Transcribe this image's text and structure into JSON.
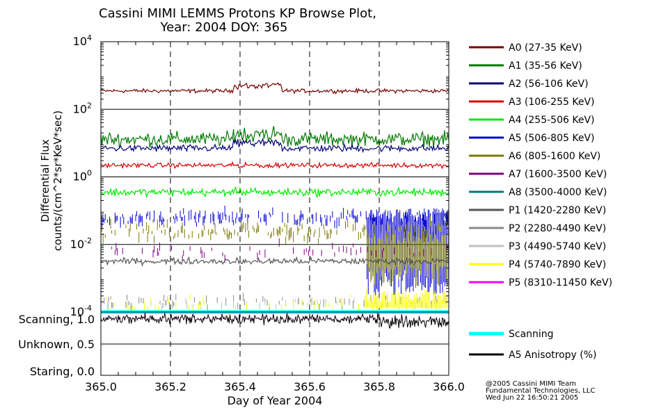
{
  "title_line1": "Cassini MIMI LEMMS Protons KP Browse Plot,",
  "title_line2": "Year: 2004 DOY: 365",
  "credits": [
    "@2005 Cassini MIMI Team",
    "Fundamental Technologies, LLC",
    "Wed Jun 22 16:50:21 2005"
  ],
  "chart_data": {
    "type": "line",
    "xlabel": "Day of Year 2004",
    "ylabel_line1": "Differential Flux",
    "ylabel_line2": "counts/(cm^2*sr*KeV*sec)",
    "xlim": [
      365.0,
      366.0
    ],
    "x_ticks": [
      "365.0",
      "365.2",
      "365.4",
      "365.6",
      "365.8",
      "366.0"
    ],
    "y_scale": "log",
    "ylim": [
      0.0001,
      10000
    ],
    "y_ticks": [
      {
        "base": "10",
        "exp": "4",
        "value": 10000
      },
      {
        "base": "10",
        "exp": "2",
        "value": 100
      },
      {
        "base": "10",
        "exp": "0",
        "value": 1
      },
      {
        "base": "10",
        "exp": "-2",
        "value": 0.01
      },
      {
        "base": "10",
        "exp": "-4",
        "value": 0.0001
      }
    ],
    "grid": true,
    "legend_position": "right",
    "series": [
      {
        "name": "A0 (27-35 KeV)",
        "color": "#7a0000",
        "level": 350,
        "noise": 0.05,
        "style": "line"
      },
      {
        "name": "A1 (35-56 KeV)",
        "color": "#007800",
        "level": 13,
        "noise": 0.18,
        "style": "line"
      },
      {
        "name": "A2 (56-106 KeV)",
        "color": "#000078",
        "level": 7,
        "noise": 0.09,
        "style": "line"
      },
      {
        "name": "A3 (106-255 KeV)",
        "color": "#d80000",
        "level": 2.2,
        "noise": 0.06,
        "style": "line"
      },
      {
        "name": "A4 (255-506 KeV)",
        "color": "#00e800",
        "level": 0.35,
        "noise": 0.1,
        "style": "line"
      },
      {
        "name": "A5 (506-805 KeV)",
        "color": "#0000d0",
        "level": 0.06,
        "noise": 0.15,
        "style": "dash"
      },
      {
        "name": "A6 (805-1600 KeV)",
        "color": "#7a7800",
        "level": 0.025,
        "noise": 0.2,
        "style": "dash"
      },
      {
        "name": "A7 (1600-3500 KeV)",
        "color": "#7a007a",
        "level": 0.006,
        "noise": 0.2,
        "style": "sparse"
      },
      {
        "name": "A8 (3500-4000 KeV)",
        "color": "#007878",
        "level": 0.003,
        "noise": 0.2,
        "style": "none"
      },
      {
        "name": "P1 (1420-2280 KeV)",
        "color": "#555555",
        "level": 0.0032,
        "noise": 0.08,
        "style": "line"
      },
      {
        "name": "P2 (2280-4490 KeV)",
        "color": "#888888",
        "level": 0.0002,
        "noise": 0.15,
        "style": "sparse"
      },
      {
        "name": "P3 (4490-5740 KeV)",
        "color": "#c0c0c0",
        "level": 0.00018,
        "noise": 0.15,
        "style": "sparse"
      },
      {
        "name": "P4 (5740-7890 KeV)",
        "color": "#ffff00",
        "level": 0.00015,
        "noise": 0.2,
        "style": "sparse"
      },
      {
        "name": "P5 (8310-11450 KeV)",
        "color": "#ff00ff",
        "level": 0.0001,
        "noise": 0.2,
        "style": "none"
      }
    ],
    "lower_panel": {
      "y_labels": [
        "Scanning, 1.0",
        "Unknown, 0.5",
        "Staring, 0.0"
      ],
      "series": [
        {
          "name": "Scanning",
          "color": "#00ffff",
          "value": 1.0
        },
        {
          "name": "A5 Anisotropy (%)",
          "color": "#000000",
          "level": 0.9,
          "noise": 0.05
        }
      ]
    }
  }
}
